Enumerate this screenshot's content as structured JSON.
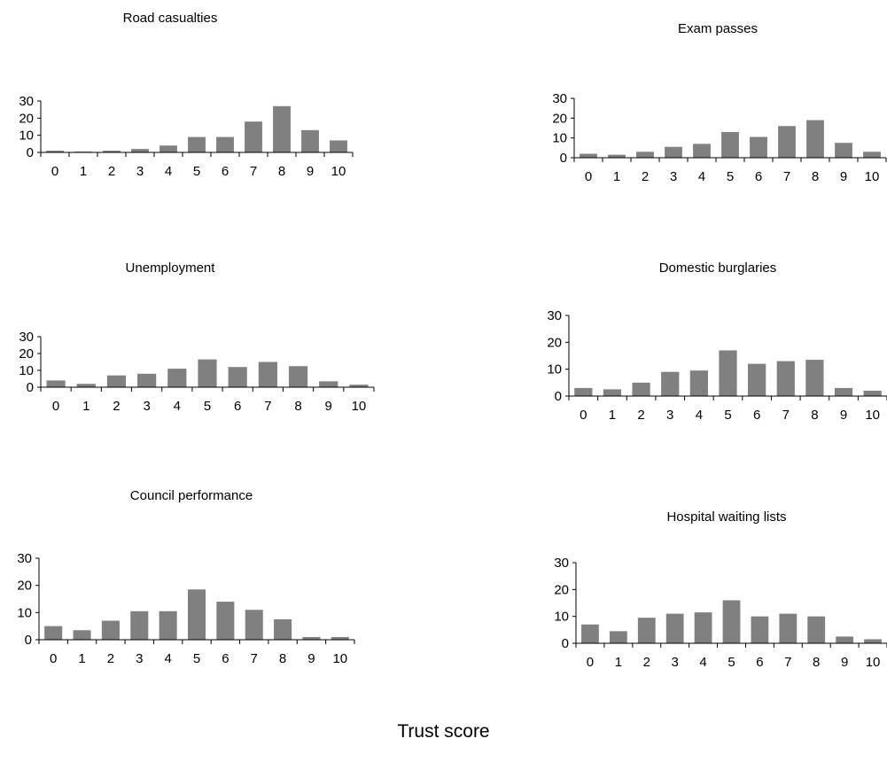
{
  "figure": {
    "xlabel": "Trust score"
  },
  "chart_data": [
    {
      "type": "bar",
      "title": "Road casualties",
      "categories": [
        "0",
        "1",
        "2",
        "3",
        "4",
        "5",
        "6",
        "7",
        "8",
        "9",
        "10"
      ],
      "values": [
        1,
        0.5,
        1,
        2,
        4,
        9,
        9,
        18,
        27,
        13,
        7
      ],
      "ylim": [
        0,
        30
      ],
      "yticks": [
        "0",
        "10",
        "20",
        "30"
      ],
      "grid": false,
      "bar_color": "#808080"
    },
    {
      "type": "bar",
      "title": "Exam passes",
      "categories": [
        "0",
        "1",
        "2",
        "3",
        "4",
        "5",
        "6",
        "7",
        "8",
        "9",
        "10"
      ],
      "values": [
        2,
        1.5,
        3,
        5.5,
        7,
        13,
        10.5,
        16,
        19,
        7.5,
        3
      ],
      "ylim": [
        0,
        30
      ],
      "yticks": [
        "0",
        "10",
        "20",
        "30"
      ],
      "grid": false,
      "bar_color": "#808080"
    },
    {
      "type": "bar",
      "title": "Unemployment",
      "categories": [
        "0",
        "1",
        "2",
        "3",
        "4",
        "5",
        "6",
        "7",
        "8",
        "9",
        "10"
      ],
      "values": [
        4,
        2,
        7,
        8,
        11,
        16.5,
        12,
        15,
        12.5,
        3.5,
        1.5
      ],
      "ylim": [
        0,
        30
      ],
      "yticks": [
        "0",
        "10",
        "20",
        "30"
      ],
      "grid": false,
      "bar_color": "#808080"
    },
    {
      "type": "bar",
      "title": "Domestic burglaries",
      "categories": [
        "0",
        "1",
        "2",
        "3",
        "4",
        "5",
        "6",
        "7",
        "8",
        "9",
        "10"
      ],
      "values": [
        3,
        2.5,
        5,
        9,
        9.5,
        17,
        12,
        13,
        13.5,
        3,
        2
      ],
      "ylim": [
        0,
        30
      ],
      "yticks": [
        "0",
        "10",
        "20",
        "30"
      ],
      "grid": false,
      "bar_color": "#808080"
    },
    {
      "type": "bar",
      "title": "Council performance",
      "categories": [
        "0",
        "1",
        "2",
        "3",
        "4",
        "5",
        "6",
        "7",
        "8",
        "9",
        "10"
      ],
      "values": [
        5,
        3.5,
        7,
        10.5,
        10.5,
        18.5,
        14,
        11,
        7.5,
        1,
        1
      ],
      "ylim": [
        0,
        30
      ],
      "yticks": [
        "0",
        "10",
        "20",
        "30"
      ],
      "grid": false,
      "bar_color": "#808080"
    },
    {
      "type": "bar",
      "title": "Hospital waiting lists",
      "categories": [
        "0",
        "1",
        "2",
        "3",
        "4",
        "5",
        "6",
        "7",
        "8",
        "9",
        "10"
      ],
      "values": [
        7,
        4.5,
        9.5,
        11,
        11.5,
        16,
        10,
        11,
        10,
        2.5,
        1.5
      ],
      "ylim": [
        0,
        30
      ],
      "yticks": [
        "0",
        "10",
        "20",
        "30"
      ],
      "grid": false,
      "bar_color": "#808080"
    }
  ]
}
